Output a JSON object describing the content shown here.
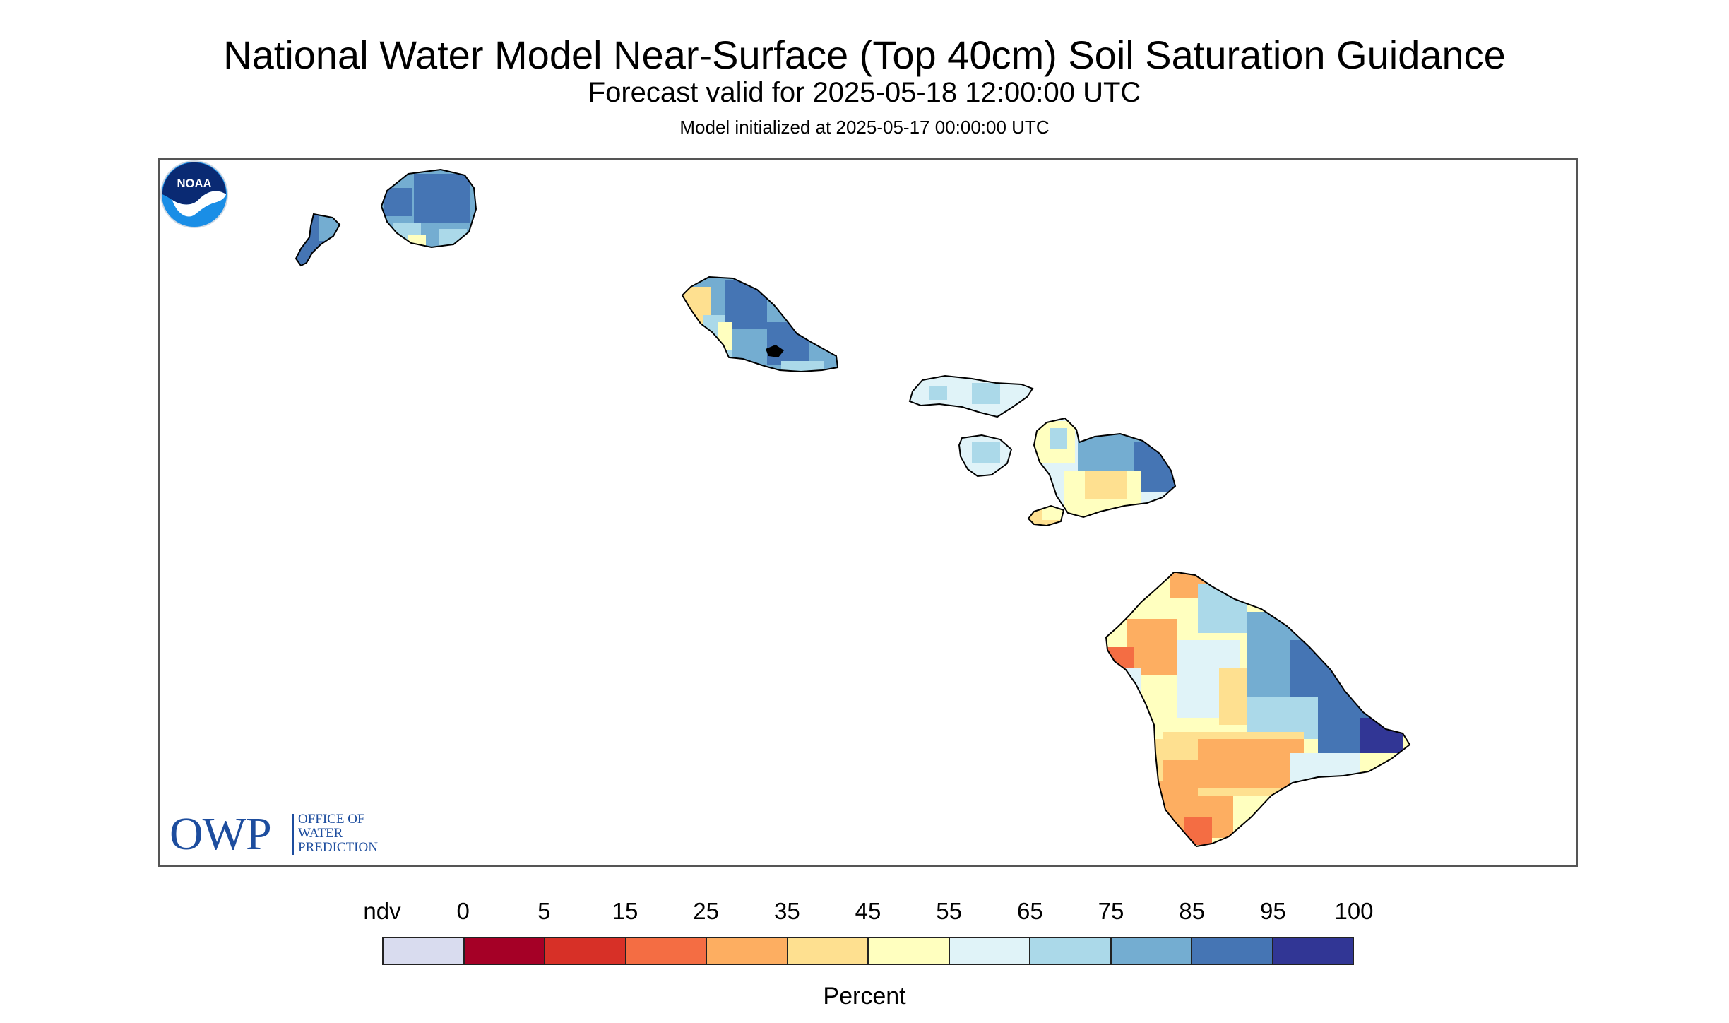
{
  "header": {
    "title": "National Water Model Near-Surface (Top 40cm) Soil Saturation Guidance",
    "subtitle": "Forecast valid for 2025-05-18 12:00:00 UTC",
    "init": "Model initialized at 2025-05-17 00:00:00 UTC"
  },
  "map": {
    "islands": [
      "Niihau",
      "Kauai",
      "Oahu",
      "Molokai",
      "Lanai",
      "Maui",
      "Kahoolawe",
      "Hawaii"
    ]
  },
  "logos": {
    "owp_letters": "OWP",
    "owp_line1": "OFFICE OF",
    "owp_line2": "WATER",
    "owp_line3": "PREDICTION",
    "noaa_text": "NOAA"
  },
  "legend": {
    "labels": [
      "ndv",
      "0",
      "5",
      "15",
      "25",
      "35",
      "45",
      "55",
      "65",
      "75",
      "85",
      "95",
      "100"
    ],
    "colors": [
      "#d9dcef",
      "#a50026",
      "#d73027",
      "#f46d43",
      "#fdae61",
      "#fee090",
      "#ffffbf",
      "#e0f3f8",
      "#abd9e9",
      "#74add1",
      "#4575b4",
      "#313695"
    ],
    "units": "Percent"
  }
}
